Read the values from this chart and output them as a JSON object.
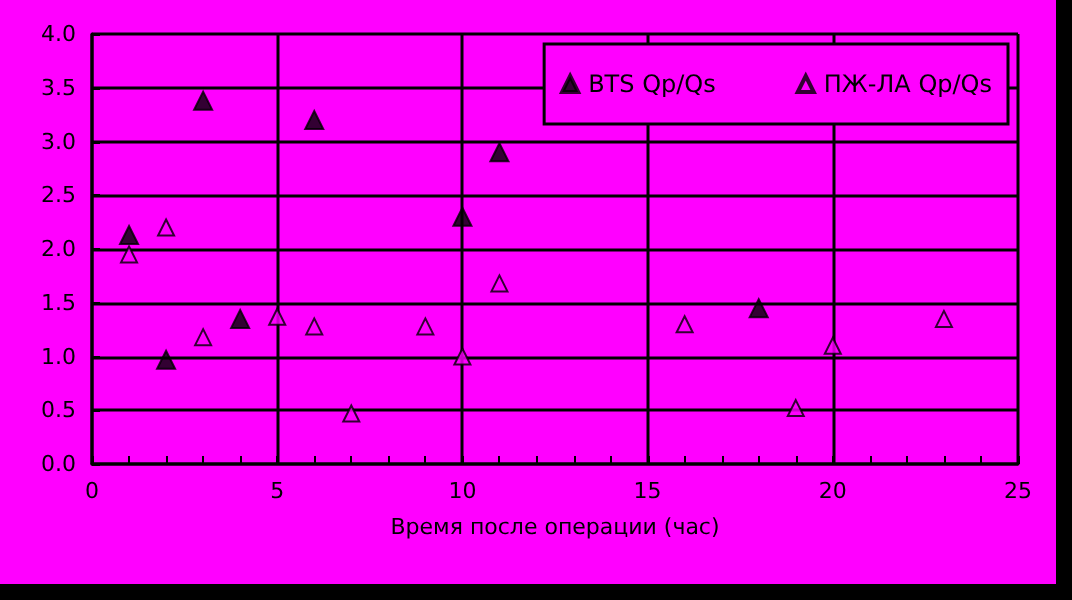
{
  "chart_data": {
    "type": "scatter",
    "xlabel": "Время после операции (час)",
    "series": [
      {
        "name": "BTS Qp/Qs",
        "color": "#000000",
        "x": [
          1,
          2,
          3,
          4,
          6,
          10,
          11,
          18
        ],
        "values": [
          2.13,
          0.97,
          3.38,
          1.35,
          3.2,
          2.3,
          2.9,
          1.45
        ]
      },
      {
        "name": "ПЖ-ЛА Qp/Qs",
        "color": "#000000",
        "x": [
          1,
          2,
          3,
          5,
          6,
          7,
          9,
          10,
          11,
          16,
          19,
          20,
          23
        ],
        "values": [
          1.95,
          2.2,
          1.18,
          1.37,
          1.28,
          0.47,
          1.28,
          1.0,
          1.68,
          1.3,
          0.52,
          1.1,
          1.35
        ]
      }
    ],
    "xlim": [
      0,
      25
    ],
    "xticks": [
      0,
      {
        "value": 1,
        "label": null
      },
      {
        "value": 2,
        "label": null
      },
      {
        "value": 3,
        "label": null
      },
      {
        "value": 4,
        "label": null
      },
      5,
      {
        "value": 6,
        "label": null
      },
      {
        "value": 7,
        "label": null
      },
      {
        "value": 8,
        "label": null
      },
      {
        "value": 9,
        "label": null
      },
      10,
      {
        "value": 11,
        "label": null
      },
      {
        "value": 12,
        "label": null
      },
      {
        "value": 13,
        "label": null
      },
      {
        "value": 14,
        "label": null
      },
      15,
      {
        "value": 16,
        "label": null
      },
      {
        "value": 17,
        "label": null
      },
      {
        "value": 18,
        "label": null
      },
      {
        "value": 19,
        "label": null
      },
      20,
      {
        "value": 21,
        "label": null
      },
      {
        "value": 22,
        "label": null
      },
      {
        "value": 23,
        "label": null
      },
      {
        "value": 24,
        "label": null
      },
      25
    ],
    "ylim": [
      0,
      4
    ],
    "yticks": [
      {
        "value": 0,
        "label": "0.0"
      },
      {
        "value": 0.5,
        "label": "0.5"
      },
      {
        "value": 1,
        "label": "1.0"
      },
      {
        "value": 1.5,
        "label": "1.5"
      },
      {
        "value": 2,
        "label": "2.0"
      },
      {
        "value": 2.5,
        "label": "2.5"
      },
      {
        "value": 3,
        "label": "3.0"
      },
      {
        "value": 3.5,
        "label": "3.5"
      },
      {
        "value": 4,
        "label": "4.0"
      }
    ],
    "grid": true,
    "legend": "top right",
    "marker": "triangle"
  }
}
